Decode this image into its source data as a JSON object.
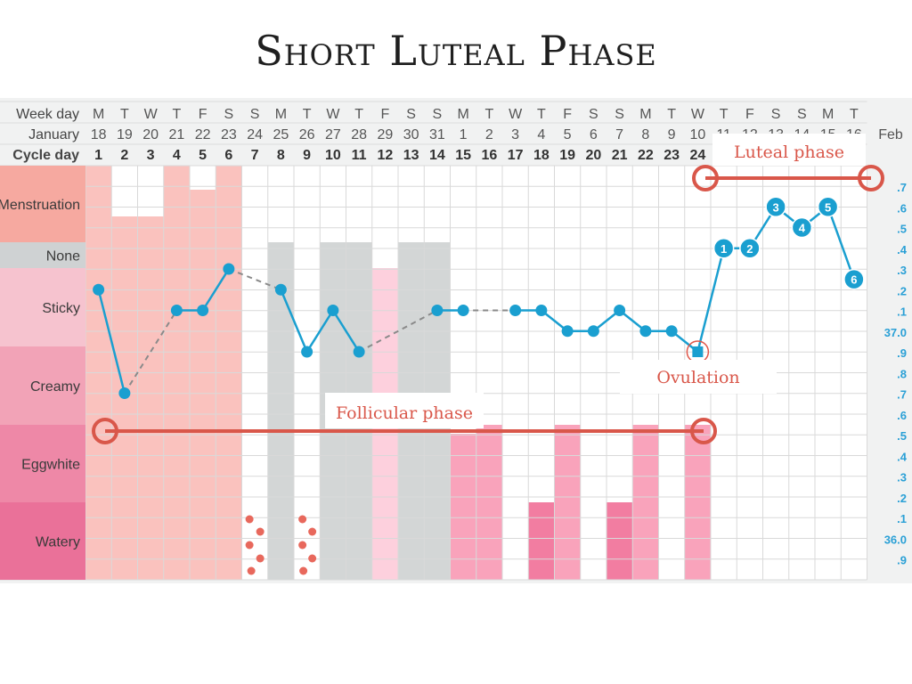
{
  "title": "Short Luteal Phase",
  "header": {
    "row_labels": [
      "Week day",
      "January",
      "Cycle day"
    ],
    "feb_label": "Feb",
    "weekdays": [
      "M",
      "T",
      "W",
      "T",
      "F",
      "S",
      "S",
      "M",
      "T",
      "W",
      "T",
      "F",
      "S",
      "S",
      "M",
      "T",
      "W",
      "T",
      "F",
      "S",
      "S",
      "M",
      "T",
      "W",
      "T",
      "F",
      "S",
      "S",
      "M",
      "T"
    ],
    "dates": [
      "18",
      "19",
      "20",
      "21",
      "22",
      "23",
      "24",
      "25",
      "26",
      "27",
      "28",
      "29",
      "30",
      "31",
      "1",
      "2",
      "3",
      "4",
      "5",
      "6",
      "7",
      "8",
      "9",
      "10",
      "11",
      "12",
      "13",
      "14",
      "15",
      "16"
    ],
    "cycle_days": [
      "1",
      "2",
      "3",
      "4",
      "5",
      "6",
      "7",
      "8",
      "9",
      "10",
      "11",
      "12",
      "13",
      "14",
      "15",
      "16",
      "17",
      "18",
      "19",
      "20",
      "21",
      "22",
      "23",
      "24"
    ]
  },
  "categories": [
    "Menstruation",
    "None",
    "Sticky",
    "Creamy",
    "Eggwhite",
    "Watery"
  ],
  "colors": {
    "menstruation": "#f6a9a0",
    "none": "#cfd2d3",
    "sticky": "#f6c3cf",
    "creamy": "#f2a3b7",
    "eggwhite": "#ee88a7",
    "watery": "#ea7199",
    "line": "#1a9fd0",
    "phase": "#d9574a",
    "fill_pink": "#f9a3bb",
    "fill_dark_pink": "#f27da1",
    "fill_light_pink": "#fdd0dd",
    "fill_gray": "#d3d6d6",
    "fill_salmon": "#fac2be"
  },
  "temp_axis": [
    ".7",
    ".6",
    ".5",
    ".4",
    ".3",
    ".2",
    ".1",
    "37.0",
    ".9",
    ".8",
    ".7",
    ".6",
    ".5",
    ".4",
    ".3",
    ".2",
    ".1",
    "36.0",
    ".9"
  ],
  "chart_data": {
    "type": "line",
    "x": [
      1,
      2,
      3,
      4,
      5,
      6,
      7,
      8,
      9,
      10,
      11,
      12,
      13,
      14,
      15,
      16,
      17,
      18,
      19,
      20,
      21,
      22,
      23,
      24,
      25,
      26,
      27,
      28,
      29,
      30
    ],
    "series": [
      {
        "values": [
          37.2,
          36.7,
          null,
          37.1,
          37.1,
          37.3,
          null,
          37.2,
          36.9,
          37.1,
          36.9,
          null,
          null,
          37.1,
          37.1,
          null,
          37.1,
          37.1,
          37.0,
          37.0,
          37.1,
          37.0,
          37.0,
          36.9,
          37.4,
          37.4,
          37.6,
          37.5,
          37.6,
          37.25
        ]
      }
    ],
    "dashed_gap_segments": [
      [
        2,
        4
      ],
      [
        6,
        8
      ],
      [
        11,
        14
      ],
      [
        15,
        17
      ]
    ],
    "post_ovulation_labels": [
      "1",
      "2",
      "3",
      "4",
      "5",
      "6"
    ],
    "ylim": [
      35.9,
      37.7
    ],
    "ylabels_left": [
      "Menstruation",
      "None",
      "Sticky",
      "Creamy",
      "Eggwhite",
      "Watery"
    ]
  },
  "phases": {
    "follicular_label": "Follicular phase",
    "luteal_label": "Luteal phase",
    "ovulation_label": "Ovulation"
  }
}
